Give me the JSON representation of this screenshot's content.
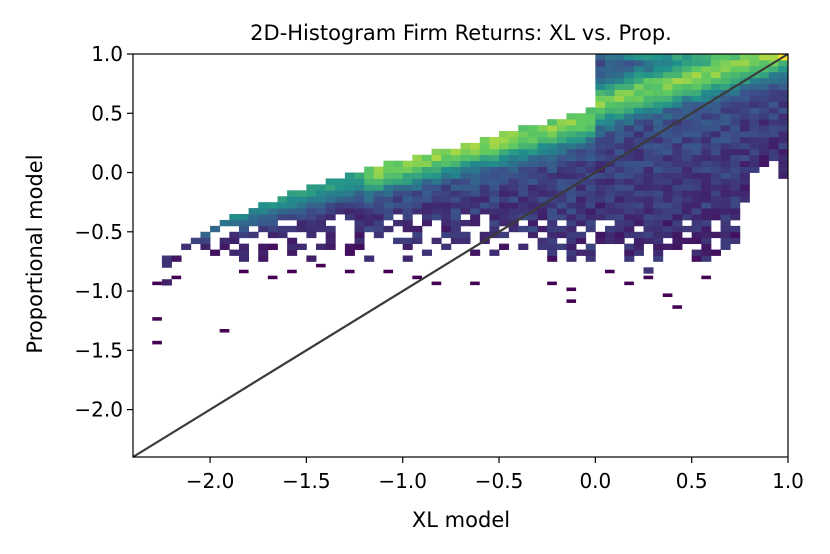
{
  "chart_data": {
    "type": "heatmap",
    "title": "2D-Histogram Firm Returns: XL vs. Prop.",
    "xlabel": "XL model",
    "ylabel": "Proportional model",
    "xlim": [
      -2.4,
      1.0
    ],
    "ylim": [
      -2.4,
      1.0
    ],
    "x_ticks": [
      -2.0,
      -1.5,
      -1.0,
      -0.5,
      0.0,
      0.5,
      1.0
    ],
    "x_tick_labels": [
      "−2.0",
      "−1.5",
      "−1.0",
      "−0.5",
      "0.0",
      "0.5",
      "1.0"
    ],
    "y_ticks": [
      1.0,
      0.5,
      0.0,
      -0.5,
      -1.0,
      -1.5,
      -2.0
    ],
    "y_tick_labels": [
      "1.0",
      "0.5",
      "0.0",
      "−0.5",
      "−1.0",
      "−1.5",
      "−2.0"
    ],
    "reference_line": {
      "x": [
        -2.4,
        1.0
      ],
      "y": [
        -2.4,
        1.0
      ],
      "color": "#3a3a3a"
    },
    "colormap": [
      "#440154",
      "#3b528b",
      "#21918c",
      "#5ec962",
      "#fde725"
    ],
    "bin_size": 0.05,
    "columns": [
      {
        "x": -2.35,
        "y_min": -0.8,
        "y_max": -0.75
      },
      {
        "x": -2.3,
        "y_min": -0.85,
        "y_max": -0.75
      },
      {
        "x": -2.25,
        "y_min": -0.95,
        "y_max": -0.7
      },
      {
        "x": -2.2,
        "y_min": -0.75,
        "y_max": -0.65
      },
      {
        "x": -2.15,
        "y_min": -0.7,
        "y_max": -0.6
      },
      {
        "x": -2.1,
        "y_min": -0.65,
        "y_max": -0.55
      },
      {
        "x": -2.05,
        "y_min": -0.65,
        "y_max": -0.5
      },
      {
        "x": -2.0,
        "y_min": -0.7,
        "y_max": -0.45
      },
      {
        "x": -1.95,
        "y_min": -0.65,
        "y_max": -0.4
      },
      {
        "x": -1.9,
        "y_min": -0.7,
        "y_max": -0.35
      },
      {
        "x": -1.85,
        "y_min": -0.75,
        "y_max": -0.35
      },
      {
        "x": -1.8,
        "y_min": -0.65,
        "y_max": -0.3
      },
      {
        "x": -1.75,
        "y_min": -0.75,
        "y_max": -0.25
      },
      {
        "x": -1.7,
        "y_min": -0.65,
        "y_max": -0.25
      },
      {
        "x": -1.65,
        "y_min": -0.6,
        "y_max": -0.2
      },
      {
        "x": -1.6,
        "y_min": -0.7,
        "y_max": -0.15
      },
      {
        "x": -1.55,
        "y_min": -0.65,
        "y_max": -0.15
      },
      {
        "x": -1.5,
        "y_min": -0.75,
        "y_max": -0.1
      },
      {
        "x": -1.45,
        "y_min": -0.65,
        "y_max": -0.1
      },
      {
        "x": -1.4,
        "y_min": -0.7,
        "y_max": -0.05
      },
      {
        "x": -1.35,
        "y_min": -0.6,
        "y_max": -0.05
      },
      {
        "x": -1.3,
        "y_min": -0.7,
        "y_max": 0.0
      },
      {
        "x": -1.25,
        "y_min": -0.65,
        "y_max": 0.0
      },
      {
        "x": -1.2,
        "y_min": -0.75,
        "y_max": 0.05
      },
      {
        "x": -1.15,
        "y_min": -0.6,
        "y_max": 0.05
      },
      {
        "x": -1.1,
        "y_min": -0.7,
        "y_max": 0.1
      },
      {
        "x": -1.05,
        "y_min": -0.6,
        "y_max": 0.1
      },
      {
        "x": -1.0,
        "y_min": -0.75,
        "y_max": 0.1
      },
      {
        "x": -0.95,
        "y_min": -0.6,
        "y_max": 0.15
      },
      {
        "x": -0.9,
        "y_min": -0.7,
        "y_max": 0.15
      },
      {
        "x": -0.85,
        "y_min": -0.6,
        "y_max": 0.2
      },
      {
        "x": -0.8,
        "y_min": -0.65,
        "y_max": 0.2
      },
      {
        "x": -0.75,
        "y_min": -0.75,
        "y_max": 0.2
      },
      {
        "x": -0.7,
        "y_min": -0.6,
        "y_max": 0.25
      },
      {
        "x": -0.65,
        "y_min": -0.7,
        "y_max": 0.25
      },
      {
        "x": -0.6,
        "y_min": -0.6,
        "y_max": 0.3
      },
      {
        "x": -0.55,
        "y_min": -0.75,
        "y_max": 0.3
      },
      {
        "x": -0.5,
        "y_min": -0.65,
        "y_max": 0.35
      },
      {
        "x": -0.45,
        "y_min": -0.75,
        "y_max": 0.35
      },
      {
        "x": -0.4,
        "y_min": -0.65,
        "y_max": 0.4
      },
      {
        "x": -0.35,
        "y_min": -0.8,
        "y_max": 0.4
      },
      {
        "x": -0.3,
        "y_min": -0.7,
        "y_max": 0.4
      },
      {
        "x": -0.25,
        "y_min": -0.75,
        "y_max": 0.45
      },
      {
        "x": -0.2,
        "y_min": -0.65,
        "y_max": 0.45
      },
      {
        "x": -0.15,
        "y_min": -0.8,
        "y_max": 0.5
      },
      {
        "x": -0.1,
        "y_min": -0.7,
        "y_max": 0.5
      },
      {
        "x": -0.05,
        "y_min": -0.75,
        "y_max": 0.55
      },
      {
        "x": 0.0,
        "y_min": -0.65,
        "y_max": 1.0
      },
      {
        "x": 0.05,
        "y_min": -0.7,
        "y_max": 1.0
      },
      {
        "x": 0.1,
        "y_min": -0.75,
        "y_max": 1.0
      },
      {
        "x": 0.15,
        "y_min": -0.8,
        "y_max": 1.0
      },
      {
        "x": 0.2,
        "y_min": -0.7,
        "y_max": 1.0
      },
      {
        "x": 0.25,
        "y_min": -0.85,
        "y_max": 1.0
      },
      {
        "x": 0.3,
        "y_min": -0.75,
        "y_max": 1.0
      },
      {
        "x": 0.35,
        "y_min": -0.7,
        "y_max": 1.0
      },
      {
        "x": 0.4,
        "y_min": -0.8,
        "y_max": 1.0
      },
      {
        "x": 0.45,
        "y_min": -0.65,
        "y_max": 1.0
      },
      {
        "x": 0.5,
        "y_min": -0.75,
        "y_max": 1.0
      },
      {
        "x": 0.55,
        "y_min": -0.8,
        "y_max": 1.0
      },
      {
        "x": 0.6,
        "y_min": -0.7,
        "y_max": 1.0
      },
      {
        "x": 0.65,
        "y_min": -0.75,
        "y_max": 1.0
      },
      {
        "x": 0.7,
        "y_min": -0.6,
        "y_max": 1.0
      },
      {
        "x": 0.75,
        "y_min": -0.25,
        "y_max": 1.0
      },
      {
        "x": 0.8,
        "y_min": 0.0,
        "y_max": 1.0
      },
      {
        "x": 0.85,
        "y_min": 0.05,
        "y_max": 1.0
      },
      {
        "x": 0.9,
        "y_min": 0.1,
        "y_max": 1.0
      },
      {
        "x": 0.95,
        "y_min": -0.05,
        "y_max": 1.0
      }
    ],
    "outliers": [
      {
        "x": -2.3,
        "y": -0.95
      },
      {
        "x": -2.3,
        "y": -1.25
      },
      {
        "x": -2.3,
        "y": -1.45
      },
      {
        "x": -2.2,
        "y": -0.9
      },
      {
        "x": -1.95,
        "y": -1.35
      },
      {
        "x": -1.85,
        "y": -0.85
      },
      {
        "x": -1.7,
        "y": -0.9
      },
      {
        "x": -1.6,
        "y": -0.85
      },
      {
        "x": -1.45,
        "y": -0.8
      },
      {
        "x": -1.3,
        "y": -0.85
      },
      {
        "x": -1.1,
        "y": -0.85
      },
      {
        "x": -0.95,
        "y": -0.9
      },
      {
        "x": -0.85,
        "y": -0.95
      },
      {
        "x": -0.65,
        "y": -0.95
      },
      {
        "x": -0.25,
        "y": -0.95
      },
      {
        "x": 0.05,
        "y": -0.85
      },
      {
        "x": 0.15,
        "y": -0.95
      },
      {
        "x": 0.25,
        "y": -0.9
      },
      {
        "x": 0.35,
        "y": -1.05
      },
      {
        "x": 0.4,
        "y": -1.15
      },
      {
        "x": 0.55,
        "y": -0.9
      },
      {
        "x": -0.15,
        "y": -1.0
      },
      {
        "x": -0.15,
        "y": -1.1
      }
    ]
  }
}
